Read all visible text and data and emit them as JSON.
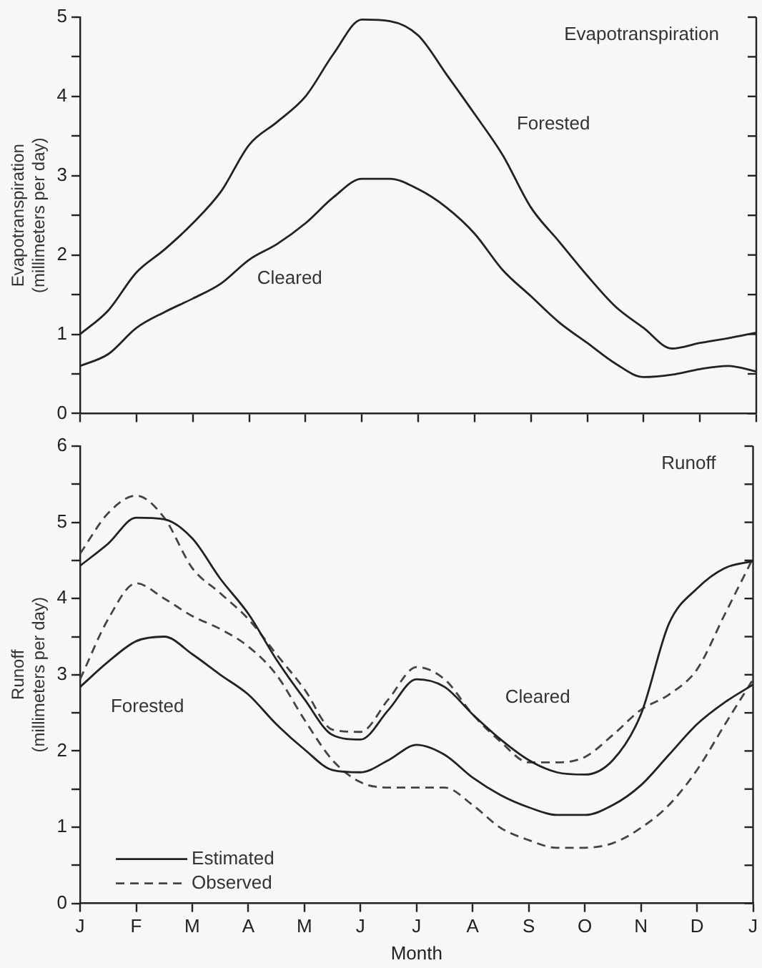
{
  "chart_data": [
    {
      "type": "line",
      "title": "Evapotranspiration",
      "ylabel": "Evapotranspiration (millimeters per day)",
      "categories": [
        null,
        null,
        null,
        null,
        null,
        null,
        null,
        null,
        null,
        null,
        null,
        null,
        null,
        null,
        null,
        null,
        null,
        null,
        null,
        null,
        null,
        null,
        null,
        null,
        null
      ],
      "series": [
        {
          "color": "#222222",
          "line_style": "solid",
          "values": [
            1.0,
            1.3,
            1.78,
            2.07,
            2.4,
            2.8,
            3.39,
            3.68,
            4.0,
            4.54,
            4.97,
            4.95,
            4.77,
            4.28,
            3.78,
            3.26,
            2.6,
            2.17,
            1.74,
            1.35,
            1.08,
            0.82,
            0.89,
            0.95,
            1.02
          ]
        },
        {
          "color": "#222222",
          "line_style": "solid",
          "values": [
            0.6,
            0.75,
            1.08,
            1.28,
            1.45,
            1.64,
            1.94,
            2.14,
            2.4,
            2.73,
            2.96,
            2.96,
            2.83,
            2.6,
            2.27,
            1.81,
            1.48,
            1.15,
            0.89,
            0.63,
            0.46,
            0.49,
            0.56,
            0.6,
            0.53
          ]
        }
      ],
      "annotations": [
        "Forested",
        "Cleared"
      ],
      "ylim": [
        0,
        5
      ],
      "yticks": [
        0,
        {
          "value": 0.5,
          "label": null
        },
        1,
        {
          "value": 1.5,
          "label": null
        },
        2,
        {
          "value": 2.5,
          "label": null
        },
        3,
        {
          "value": 3.5,
          "label": null
        },
        4,
        {
          "value": 4.5,
          "label": null
        },
        5
      ],
      "tick_labels": "y",
      "grid": false,
      "legend": false,
      "marker": "none"
    },
    {
      "type": "line",
      "title": "Runoff",
      "xlabel": "Month",
      "ylabel": "Runoff (millimeters per day)",
      "categories": [
        "J",
        null,
        "F",
        null,
        "M",
        null,
        "A",
        null,
        "M",
        null,
        "J",
        null,
        "J",
        null,
        "A",
        null,
        "S",
        null,
        "O",
        null,
        "N",
        null,
        "D",
        null,
        "J"
      ],
      "series": [
        {
          "name": "Estimated",
          "color": "#222222",
          "line_style": "solid",
          "values": [
            4.43,
            4.72,
            5.06,
            5.04,
            4.79,
            4.26,
            3.8,
            3.2,
            2.68,
            2.21,
            2.15,
            2.54,
            2.94,
            2.84,
            2.48,
            2.15,
            1.88,
            1.72,
            1.69,
            1.88,
            2.48,
            3.67,
            4.13,
            4.4,
            4.49
          ]
        },
        {
          "name": "Observed",
          "color": "#444444",
          "line_style": "dashed",
          "values": [
            4.59,
            5.12,
            5.35,
            5.06,
            4.4,
            4.07,
            3.73,
            3.27,
            2.81,
            2.28,
            2.25,
            2.68,
            3.1,
            2.94,
            2.48,
            2.12,
            1.85,
            1.85,
            1.92,
            2.21,
            2.54,
            2.74,
            3.07,
            3.8,
            4.53
          ]
        },
        {
          "color": "#222222",
          "line_style": "solid",
          "values": [
            2.84,
            3.17,
            3.44,
            3.5,
            3.27,
            3.0,
            2.74,
            2.35,
            2.02,
            1.75,
            1.72,
            1.88,
            2.08,
            1.95,
            1.65,
            1.42,
            1.26,
            1.16,
            1.16,
            1.29,
            1.55,
            1.95,
            2.35,
            2.64,
            2.87
          ]
        },
        {
          "color": "#444444",
          "line_style": "dashed",
          "values": [
            2.94,
            3.73,
            4.2,
            4.0,
            3.77,
            3.6,
            3.37,
            3.0,
            2.41,
            1.88,
            1.59,
            1.52,
            1.52,
            1.52,
            1.29,
            0.99,
            0.83,
            0.73,
            0.73,
            0.79,
            0.99,
            1.29,
            1.75,
            2.35,
            2.94
          ]
        }
      ],
      "annotations": [
        "Forested",
        "Cleared"
      ],
      "ylim": [
        0,
        6
      ],
      "yticks": [
        0,
        {
          "value": 0.5,
          "label": null
        },
        1,
        {
          "value": 1.5,
          "label": null
        },
        2,
        {
          "value": 2.5,
          "label": null
        },
        3,
        {
          "value": 3.5,
          "label": null
        },
        4,
        {
          "value": 4.5,
          "label": null
        },
        5,
        {
          "value": 5.5,
          "label": null
        },
        6
      ],
      "grid": false,
      "legend": "bottom left",
      "marker": "none"
    }
  ]
}
